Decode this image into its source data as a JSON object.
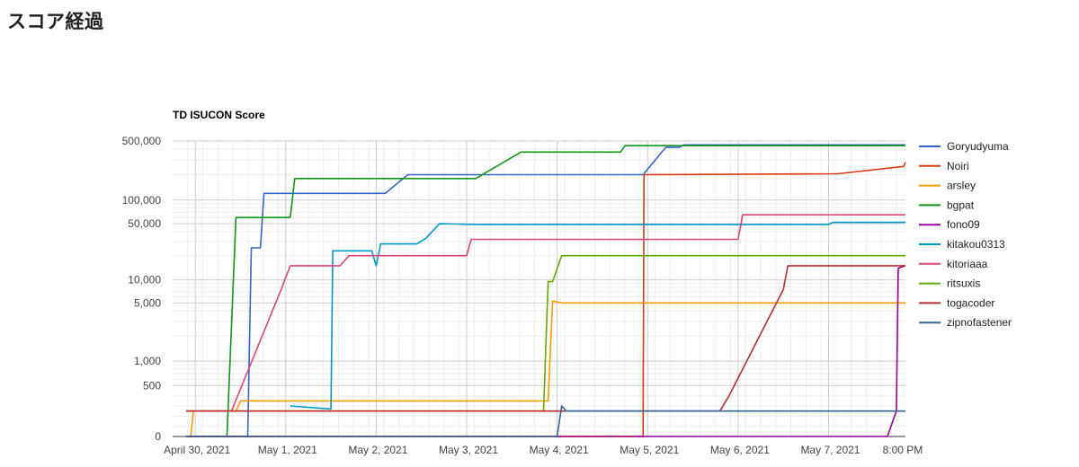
{
  "page": {
    "title": "スコア経過"
  },
  "chart_data": {
    "type": "line",
    "title": "TD ISUCON Score",
    "xlabel": "",
    "ylabel": "",
    "y_scale": "symlog",
    "y_ticks": [
      {
        "value": 0,
        "label": "0"
      },
      {
        "value": 500,
        "label": "500"
      },
      {
        "value": 1000,
        "label": "1,000"
      },
      {
        "value": 5000,
        "label": "5,000"
      },
      {
        "value": 10000,
        "label": "10,000"
      },
      {
        "value": 50000,
        "label": "50,000"
      },
      {
        "value": 100000,
        "label": "100,000"
      },
      {
        "value": 500000,
        "label": "500,000"
      }
    ],
    "x_ticks": [
      {
        "value": 0,
        "label": "April 30, 2021"
      },
      {
        "value": 1,
        "label": "May 1, 2021"
      },
      {
        "value": 2,
        "label": "May 2, 2021"
      },
      {
        "value": 3,
        "label": "May 3, 2021"
      },
      {
        "value": 4,
        "label": "May 4, 2021"
      },
      {
        "value": 5,
        "label": "May 5, 2021"
      },
      {
        "value": 6,
        "label": "May 6, 2021"
      },
      {
        "value": 7,
        "label": "May 7, 2021"
      },
      {
        "value": 7.8,
        "label": "8:00 PM"
      }
    ],
    "x_range": [
      -0.25,
      7.85
    ],
    "grid": true,
    "legend_position": "right",
    "series": [
      {
        "name": "Goryudyuma",
        "color": "#3366cc",
        "points": [
          [
            -0.1,
            0
          ],
          [
            0.58,
            0
          ],
          [
            0.62,
            25000
          ],
          [
            0.72,
            25000
          ],
          [
            0.76,
            120000
          ],
          [
            2.1,
            120000
          ],
          [
            2.35,
            200000
          ],
          [
            4.95,
            200000
          ],
          [
            5.2,
            420000
          ],
          [
            5.35,
            420000
          ],
          [
            5.4,
            450000
          ],
          [
            7.85,
            450000
          ]
        ]
      },
      {
        "name": "Noiri",
        "color": "#dc3912",
        "points": [
          [
            -0.1,
            0
          ],
          [
            4.95,
            0
          ],
          [
            4.96,
            200000
          ],
          [
            7.1,
            205000
          ],
          [
            7.83,
            250000
          ],
          [
            7.85,
            280000
          ]
        ]
      },
      {
        "name": "arsley",
        "color": "#ff9900",
        "points": [
          [
            -0.1,
            0
          ],
          [
            -0.05,
            0
          ],
          [
            -0.02,
            250
          ],
          [
            0.05,
            250
          ],
          [
            0.45,
            250
          ],
          [
            0.5,
            350
          ],
          [
            3.9,
            350
          ],
          [
            3.95,
            5300
          ],
          [
            4.05,
            5000
          ],
          [
            7.85,
            5000
          ]
        ]
      },
      {
        "name": "bgpat",
        "color": "#109618",
        "points": [
          [
            -0.1,
            0
          ],
          [
            0.35,
            0
          ],
          [
            0.45,
            60000
          ],
          [
            1.05,
            60000
          ],
          [
            1.1,
            180000
          ],
          [
            3.1,
            180000
          ],
          [
            3.6,
            370000
          ],
          [
            4.7,
            370000
          ],
          [
            4.75,
            440000
          ],
          [
            7.85,
            440000
          ]
        ]
      },
      {
        "name": "fono09",
        "color": "#990099",
        "points": [
          [
            -0.1,
            0
          ],
          [
            7.65,
            0
          ],
          [
            7.75,
            250
          ],
          [
            7.77,
            14000
          ],
          [
            7.85,
            15000
          ]
        ]
      },
      {
        "name": "kitakou0313",
        "color": "#0099c6",
        "points": [
          [
            1.05,
            300
          ],
          [
            1.5,
            270
          ],
          [
            1.52,
            23000
          ],
          [
            1.95,
            23000
          ],
          [
            2.0,
            15000
          ],
          [
            2.05,
            28000
          ],
          [
            2.45,
            28000
          ],
          [
            2.55,
            33000
          ],
          [
            2.7,
            50000
          ],
          [
            3.1,
            49000
          ],
          [
            7.0,
            49000
          ],
          [
            7.05,
            52000
          ],
          [
            7.85,
            52000
          ]
        ]
      },
      {
        "name": "kitoriaaa",
        "color": "#dd4477",
        "points": [
          [
            -0.1,
            250
          ],
          [
            0.4,
            250
          ],
          [
            0.95,
            7500
          ],
          [
            1.05,
            15000
          ],
          [
            1.6,
            15000
          ],
          [
            1.7,
            20000
          ],
          [
            3.0,
            20000
          ],
          [
            3.05,
            32000
          ],
          [
            6.0,
            32000
          ],
          [
            6.05,
            65000
          ],
          [
            7.85,
            65000
          ]
        ]
      },
      {
        "name": "ritsuxis",
        "color": "#66aa00",
        "points": [
          [
            -0.1,
            250
          ],
          [
            0.6,
            250
          ],
          [
            3.8,
            250
          ],
          [
            3.85,
            250
          ],
          [
            3.9,
            9500
          ],
          [
            3.95,
            9500
          ],
          [
            4.05,
            20000
          ],
          [
            7.85,
            20000
          ]
        ]
      },
      {
        "name": "togacoder",
        "color": "#b82e2e",
        "points": [
          [
            -0.1,
            250
          ],
          [
            0.05,
            250
          ],
          [
            0.95,
            250
          ],
          [
            5.8,
            250
          ],
          [
            5.9,
            400
          ],
          [
            6.5,
            7500
          ],
          [
            6.55,
            15000
          ],
          [
            7.85,
            15000
          ]
        ]
      },
      {
        "name": "zipnofastener",
        "color": "#316395",
        "points": [
          [
            -0.1,
            0
          ],
          [
            4.0,
            0
          ],
          [
            4.05,
            300
          ],
          [
            4.1,
            250
          ],
          [
            4.15,
            250
          ],
          [
            7.85,
            250
          ]
        ]
      }
    ]
  }
}
